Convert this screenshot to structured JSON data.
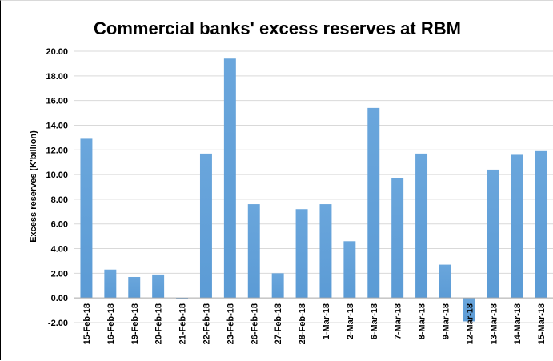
{
  "chart_data": {
    "type": "bar",
    "title": "Commercial banks' excess reserves at RBM",
    "xlabel": "",
    "ylabel": "Excess reserves (K'billion)",
    "ylim": [
      -2,
      20
    ],
    "yticks": [
      "-2.00",
      "0.00",
      "2.00",
      "4.00",
      "6.00",
      "8.00",
      "10.00",
      "12.00",
      "14.00",
      "16.00",
      "18.00",
      "20.00"
    ],
    "grid": true,
    "legend": "none",
    "bar_color": "#5b9bd5",
    "categories": [
      "15-Feb-18",
      "16-Feb-18",
      "19-Feb-18",
      "20-Feb-18",
      "21-Feb-18",
      "22-Feb-18",
      "23-Feb-18",
      "26-Feb-18",
      "27-Feb-18",
      "28-Feb-18",
      "1-Mar-18",
      "2-Mar-18",
      "6-Mar-18",
      "7-Mar-18",
      "8-Mar-18",
      "9-Mar-18",
      "12-Mar-18",
      "13-Mar-18",
      "14-Mar-18",
      "15-Mar-18"
    ],
    "values": [
      12.9,
      2.3,
      1.7,
      1.9,
      -0.1,
      11.7,
      19.4,
      7.6,
      2.0,
      7.2,
      7.6,
      4.6,
      15.4,
      9.7,
      11.7,
      2.7,
      -1.9,
      10.4,
      11.6,
      11.9
    ]
  }
}
